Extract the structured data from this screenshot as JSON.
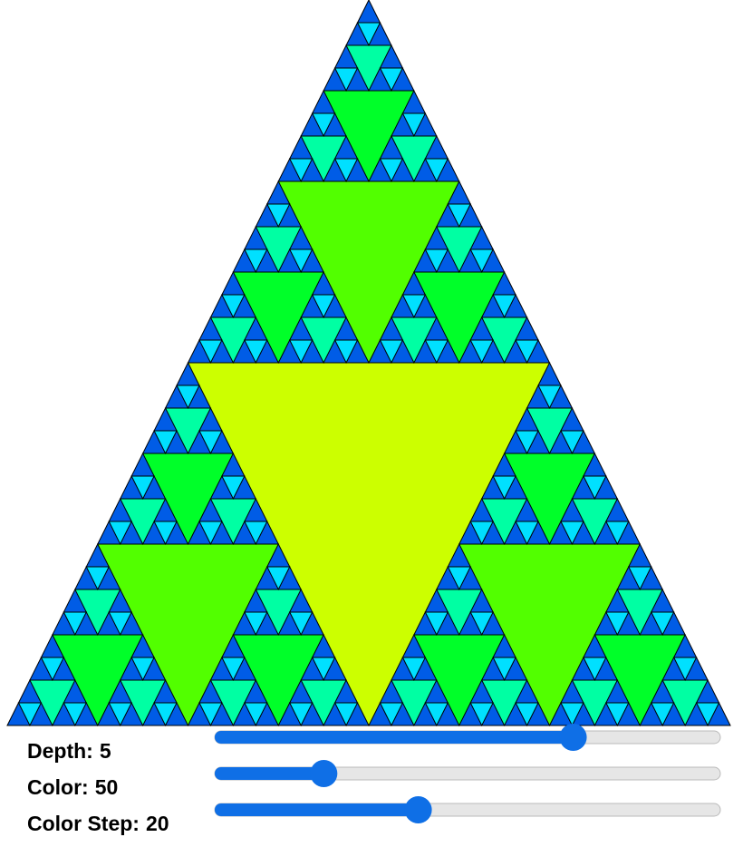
{
  "fractal": {
    "depth": 5,
    "color": 50,
    "color_step": 20
  },
  "controls": [
    {
      "label": "Depth:",
      "value": 5,
      "min": 0,
      "max": 7
    },
    {
      "label": "Color:",
      "value": 50,
      "min": 0,
      "max": 240
    },
    {
      "label": "Color Step:",
      "value": 20,
      "min": 0,
      "max": 50
    }
  ]
}
